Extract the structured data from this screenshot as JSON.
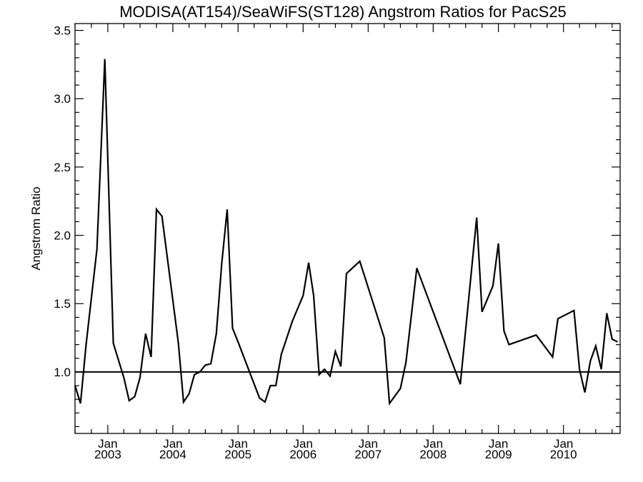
{
  "chart_data": {
    "type": "line",
    "title": "MODISA(AT154)/SeaWiFS(ST128)  Angstrom Ratios for PacS25",
    "xlabel": "",
    "ylabel": "Angstrom Ratio",
    "x_axis": "date",
    "xlim": [
      "2002-07-01",
      "2010-11-15"
    ],
    "ylim": [
      0.55,
      3.55
    ],
    "y_ticks": [
      "1.0",
      "1.5",
      "2.0",
      "2.5",
      "3.0",
      "3.5"
    ],
    "y_tick_values": [
      1.0,
      1.5,
      2.0,
      2.5,
      3.0,
      3.5
    ],
    "x_ticks": [
      {
        "date": "2003-01-01",
        "month": "Jan",
        "year": "2003"
      },
      {
        "date": "2004-01-01",
        "month": "Jan",
        "year": "2004"
      },
      {
        "date": "2005-01-01",
        "month": "Jan",
        "year": "2005"
      },
      {
        "date": "2006-01-01",
        "month": "Jan",
        "year": "2006"
      },
      {
        "date": "2007-01-01",
        "month": "Jan",
        "year": "2007"
      },
      {
        "date": "2008-01-01",
        "month": "Jan",
        "year": "2008"
      },
      {
        "date": "2009-01-01",
        "month": "Jan",
        "year": "2009"
      },
      {
        "date": "2010-01-01",
        "month": "Jan",
        "year": "2010"
      }
    ],
    "reference_line": 1.0,
    "grid": false,
    "series": [
      {
        "name": "",
        "x": [
          "2002-07-01",
          "2002-08-01",
          "2002-09-01",
          "2002-11-01",
          "2002-12-15",
          "2003-02-01",
          "2003-04-01",
          "2003-05-01",
          "2003-06-01",
          "2003-07-01",
          "2003-08-01",
          "2003-09-01",
          "2003-10-01",
          "2003-11-01",
          "2004-02-01",
          "2004-03-01",
          "2004-04-01",
          "2004-05-01",
          "2004-06-01",
          "2004-07-01",
          "2004-08-01",
          "2004-09-01",
          "2004-10-01",
          "2004-11-01",
          "2004-12-01",
          "2005-01-01",
          "2005-05-01",
          "2005-06-01",
          "2005-07-01",
          "2005-08-01",
          "2005-09-01",
          "2005-11-01",
          "2006-01-01",
          "2006-02-01",
          "2006-03-01",
          "2006-04-01",
          "2006-05-01",
          "2006-06-01",
          "2006-07-01",
          "2006-08-01",
          "2006-09-01",
          "2006-11-15",
          "2007-04-01",
          "2007-05-01",
          "2007-07-01",
          "2007-08-01",
          "2007-10-01",
          "2008-06-01",
          "2008-09-01",
          "2008-10-01",
          "2008-12-01",
          "2009-01-01",
          "2009-02-01",
          "2009-03-01",
          "2009-08-01",
          "2009-11-01",
          "2009-12-01",
          "2010-03-01",
          "2010-04-01",
          "2010-05-01",
          "2010-06-01",
          "2010-07-01",
          "2010-08-01",
          "2010-09-01",
          "2010-10-01",
          "2010-11-01"
        ],
        "y": [
          0.9,
          0.77,
          1.2,
          1.9,
          3.29,
          1.21,
          0.96,
          0.79,
          0.82,
          0.96,
          1.28,
          1.11,
          2.19,
          2.14,
          1.21,
          0.78,
          0.84,
          0.98,
          1.0,
          1.05,
          1.06,
          1.28,
          1.79,
          2.19,
          1.32,
          1.22,
          0.81,
          0.78,
          0.9,
          0.9,
          1.13,
          1.37,
          1.56,
          1.8,
          1.56,
          0.98,
          1.02,
          0.97,
          1.15,
          1.04,
          1.72,
          1.81,
          1.25,
          0.77,
          0.88,
          1.07,
          1.76,
          0.91,
          2.13,
          1.44,
          1.63,
          1.94,
          1.3,
          1.2,
          1.27,
          1.11,
          1.39,
          1.45,
          1.02,
          0.85,
          1.08,
          1.19,
          1.02,
          1.43,
          1.24,
          1.22
        ]
      }
    ]
  }
}
